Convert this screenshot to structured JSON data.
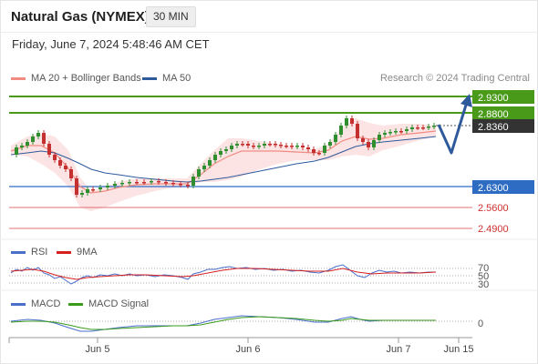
{
  "header": {
    "title": "Natural Gas (NYMEX)",
    "timeframe": "30 MIN"
  },
  "datetime": "Friday, June 7, 2024 5:48:46 AM CET",
  "main_chart": {
    "legend": [
      {
        "label": "MA 20 + Bollinger Bands",
        "color": "#f28b82"
      },
      {
        "label": "MA 50",
        "color": "#2e5a9c"
      }
    ],
    "credit": "Research © 2024 Trading Central",
    "levels": [
      {
        "value": "2.9300",
        "color": "#4a9a1a",
        "kind": "resistance"
      },
      {
        "value": "2.8800",
        "color": "#4a9a1a",
        "kind": "resistance"
      },
      {
        "value": "2.8360",
        "color": "#333333",
        "kind": "last"
      },
      {
        "value": "2.6300",
        "color": "#2e6cc4",
        "kind": "pivot"
      },
      {
        "value": "2.5600",
        "color": "#e05050",
        "kind": "support"
      },
      {
        "value": "2.4900",
        "color": "#e05050",
        "kind": "support"
      }
    ]
  },
  "rsi_panel": {
    "legend": [
      {
        "label": "RSI",
        "color": "#4a6fc9"
      },
      {
        "label": "9MA",
        "color": "#d62020"
      }
    ],
    "ticks": [
      "70",
      "50",
      "30"
    ]
  },
  "macd_panel": {
    "legend": [
      {
        "label": "MACD",
        "color": "#4a6fc9"
      },
      {
        "label": "MACD Signal",
        "color": "#3a9a1a"
      }
    ],
    "ticks": [
      "0"
    ]
  },
  "x_axis": {
    "labels": [
      "Jun 5",
      "Jun 6",
      "Jun 7",
      "Jun 15"
    ]
  },
  "colors": {
    "bull_candle": "#2f8f2f",
    "bear_candle": "#c43030",
    "band_fill": "#fde4e4",
    "forecast_arrow": "#2e5a9c"
  }
}
